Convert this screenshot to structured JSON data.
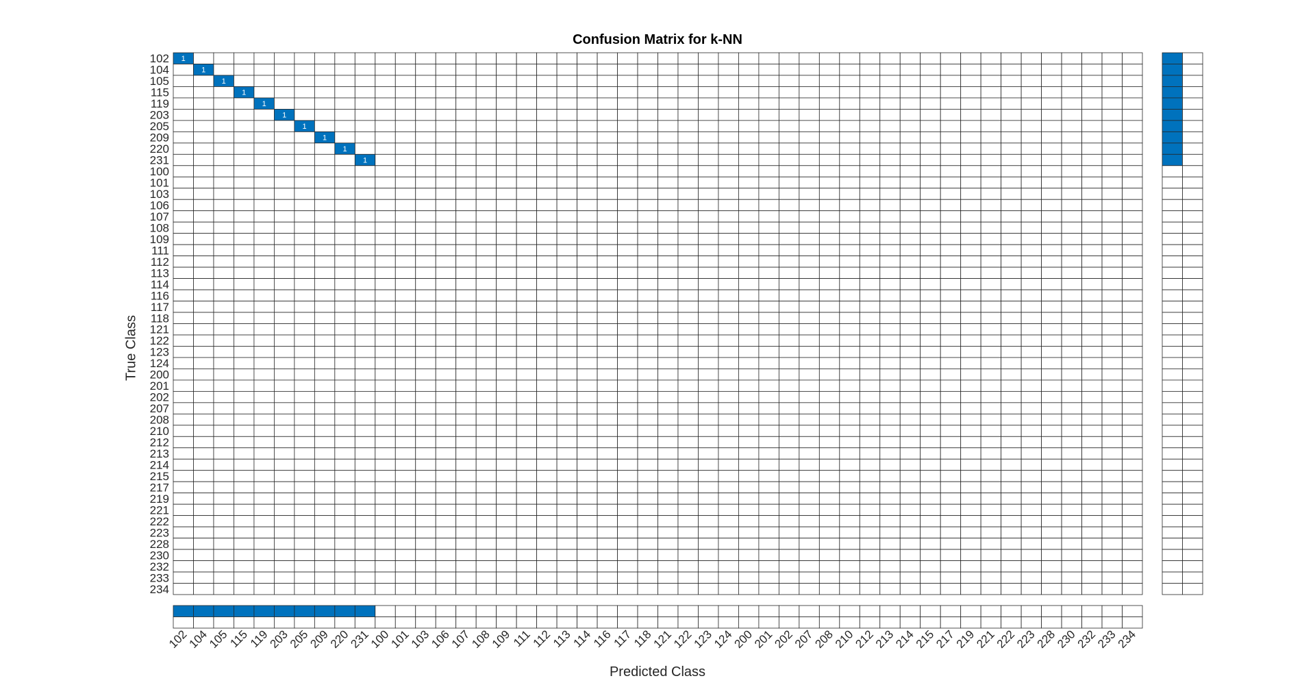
{
  "colors": {
    "diagonal": "#0072BD",
    "cell_text_on_fill": "#ffffff",
    "grid": "#262626",
    "text": "#262626"
  },
  "chart_data": {
    "type": "heatmap",
    "title": "Confusion Matrix for k-NN",
    "xlabel": "Predicted Class",
    "ylabel": "True Class",
    "classes": [
      "102",
      "104",
      "105",
      "115",
      "119",
      "203",
      "205",
      "209",
      "220",
      "231",
      "100",
      "101",
      "103",
      "106",
      "107",
      "108",
      "109",
      "111",
      "112",
      "113",
      "114",
      "116",
      "117",
      "118",
      "121",
      "122",
      "123",
      "124",
      "200",
      "201",
      "202",
      "207",
      "208",
      "210",
      "212",
      "213",
      "214",
      "215",
      "217",
      "219",
      "221",
      "222",
      "223",
      "228",
      "230",
      "232",
      "233",
      "234"
    ],
    "nonzero_cells": [
      {
        "true": "102",
        "predicted": "102",
        "value": 1
      },
      {
        "true": "104",
        "predicted": "104",
        "value": 1
      },
      {
        "true": "105",
        "predicted": "105",
        "value": 1
      },
      {
        "true": "115",
        "predicted": "115",
        "value": 1
      },
      {
        "true": "119",
        "predicted": "119",
        "value": 1
      },
      {
        "true": "203",
        "predicted": "203",
        "value": 1
      },
      {
        "true": "205",
        "predicted": "205",
        "value": 1
      },
      {
        "true": "209",
        "predicted": "209",
        "value": 1
      },
      {
        "true": "220",
        "predicted": "220",
        "value": 1
      },
      {
        "true": "231",
        "predicted": "231",
        "value": 1
      }
    ],
    "row_summary": {
      "correct_fraction": [
        1,
        1,
        1,
        1,
        1,
        1,
        1,
        1,
        1,
        1,
        0,
        0,
        0,
        0,
        0,
        0,
        0,
        0,
        0,
        0,
        0,
        0,
        0,
        0,
        0,
        0,
        0,
        0,
        0,
        0,
        0,
        0,
        0,
        0,
        0,
        0,
        0,
        0,
        0,
        0,
        0,
        0,
        0,
        0,
        0,
        0,
        0,
        0
      ]
    },
    "column_summary": {
      "correct_fraction": [
        1,
        1,
        1,
        1,
        1,
        1,
        1,
        1,
        1,
        1,
        0,
        0,
        0,
        0,
        0,
        0,
        0,
        0,
        0,
        0,
        0,
        0,
        0,
        0,
        0,
        0,
        0,
        0,
        0,
        0,
        0,
        0,
        0,
        0,
        0,
        0,
        0,
        0,
        0,
        0,
        0,
        0,
        0,
        0,
        0,
        0,
        0,
        0
      ]
    }
  }
}
